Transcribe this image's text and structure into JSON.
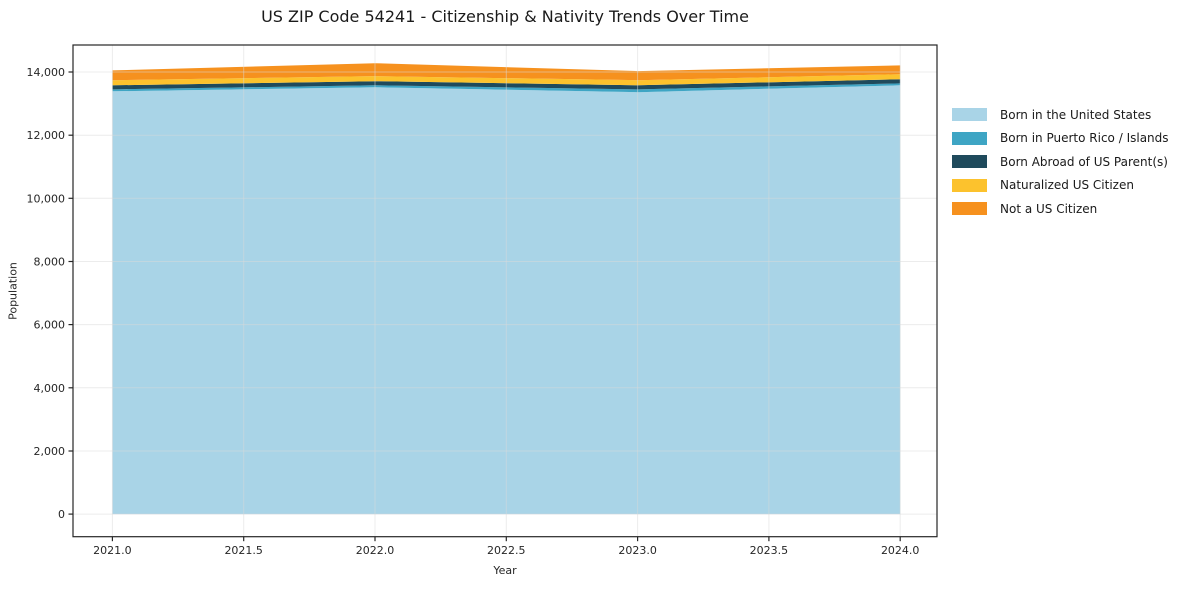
{
  "title": "US ZIP Code 54241 - Citizenship & Nativity Trends Over Time",
  "chart_data": {
    "type": "area",
    "stacked": true,
    "title": "US ZIP Code 54241 - Citizenship & Nativity Trends Over Time",
    "xlabel": "Year",
    "ylabel": "Population",
    "x": [
      2021,
      2022,
      2023,
      2024
    ],
    "series": [
      {
        "name": "Born in the United States",
        "color": "#a9d4e7",
        "values": [
          13390,
          13520,
          13360,
          13580
        ]
      },
      {
        "name": "Born in Puerto Rico / Islands",
        "color": "#3ea5c4",
        "values": [
          60,
          60,
          90,
          60
        ]
      },
      {
        "name": "Born Abroad of US Parent(s)",
        "color": "#1f4a5c",
        "values": [
          130,
          130,
          130,
          130
        ]
      },
      {
        "name": "Naturalized US Citizen",
        "color": "#fcc22d",
        "values": [
          160,
          160,
          160,
          160
        ]
      },
      {
        "name": "Not a US Citizen",
        "color": "#f6911e",
        "values": [
          310,
          410,
          290,
          280
        ]
      }
    ],
    "totals": [
      14050,
      14280,
      14030,
      14210
    ],
    "x_ticks": {
      "values": [
        2021.0,
        2021.5,
        2022.0,
        2022.5,
        2023.0,
        2023.5,
        2024.0
      ],
      "labels": [
        "2021.0",
        "2021.5",
        "2022.0",
        "2022.5",
        "2023.0",
        "2023.5",
        "2024.0"
      ]
    },
    "y_ticks": {
      "values": [
        0,
        2000,
        4000,
        6000,
        8000,
        10000,
        12000,
        14000
      ],
      "labels": [
        "0",
        "2,000",
        "4,000",
        "6,000",
        "8,000",
        "10,000",
        "12,000",
        "14,000"
      ]
    },
    "xlim": [
      2020.85,
      2024.14
    ],
    "ylim": [
      -715,
      14855
    ],
    "grid": true,
    "legend_position": "right",
    "colors": {
      "spine": "#262626",
      "grid": "#d9d9d9",
      "tick_label": "#262626",
      "background": "#ffffff"
    }
  }
}
